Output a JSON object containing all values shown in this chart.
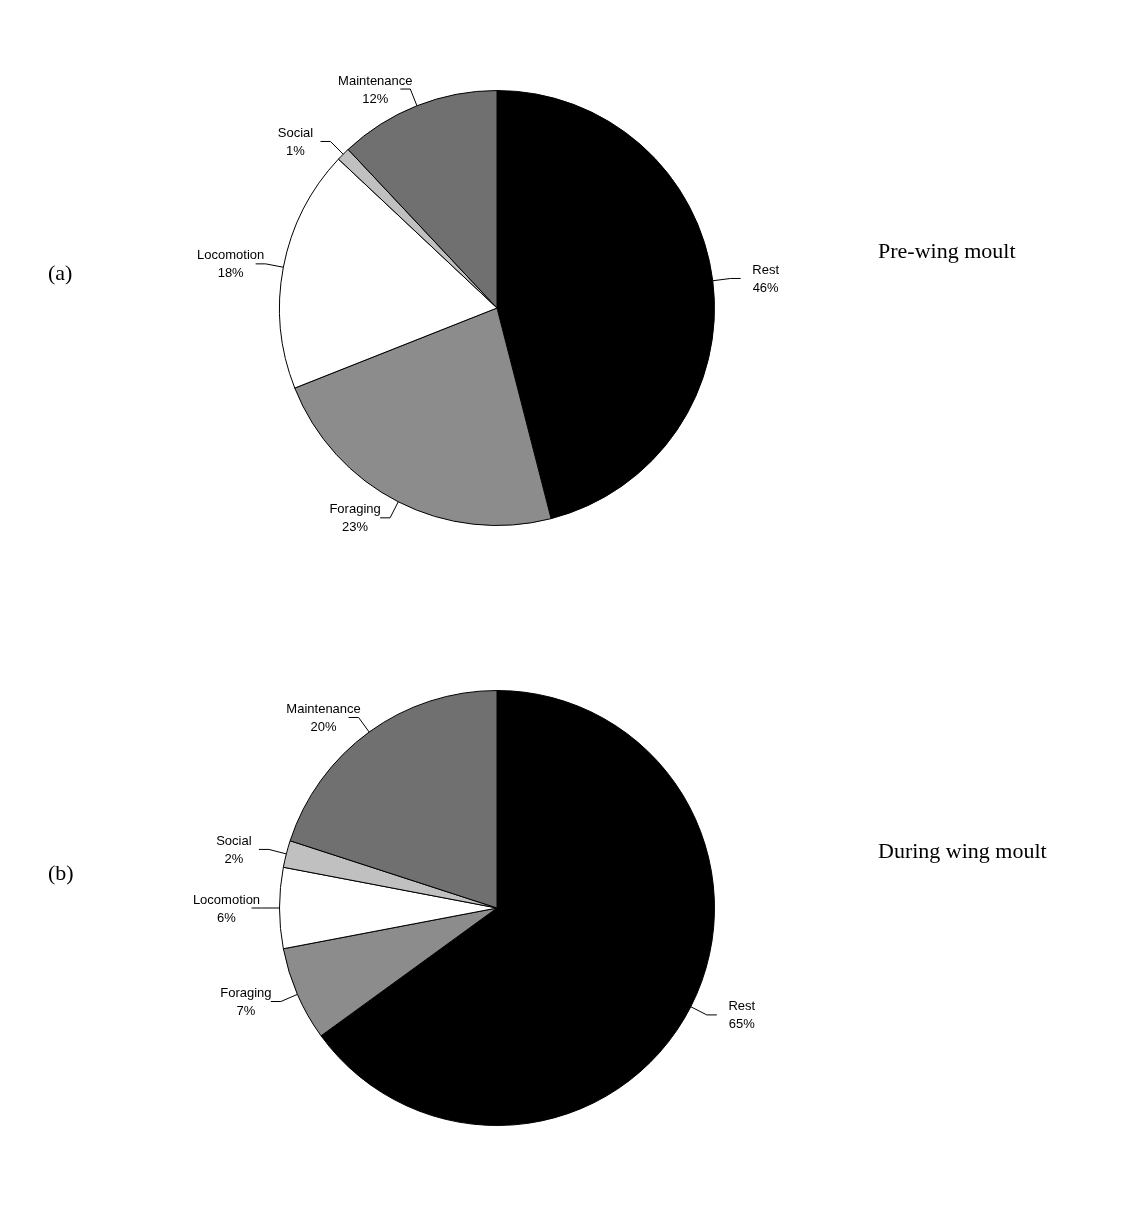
{
  "chart_data": [
    {
      "type": "pie",
      "title": "(a)",
      "subtitle": "Pre-wing moult",
      "categories": [
        "Rest",
        "Foraging",
        "Locomotion",
        "Social",
        "Maintenance"
      ],
      "values": [
        46,
        23,
        18,
        1,
        12
      ],
      "value_labels": [
        "46%",
        "23%",
        "18%",
        "1%",
        "12%"
      ],
      "colors": [
        "#000000",
        "#8c8c8c",
        "#ffffff",
        "#c0c0c0",
        "#707070"
      ]
    },
    {
      "type": "pie",
      "title": "(b)",
      "subtitle": "During wing moult",
      "categories": [
        "Rest",
        "Foraging",
        "Locomotion",
        "Social",
        "Maintenance"
      ],
      "values": [
        65,
        7,
        6,
        2,
        20
      ],
      "value_labels": [
        "65%",
        "7%",
        "6%",
        "2%",
        "20%"
      ],
      "colors": [
        "#000000",
        "#8c8c8c",
        "#ffffff",
        "#c0c0c0",
        "#707070"
      ]
    }
  ]
}
